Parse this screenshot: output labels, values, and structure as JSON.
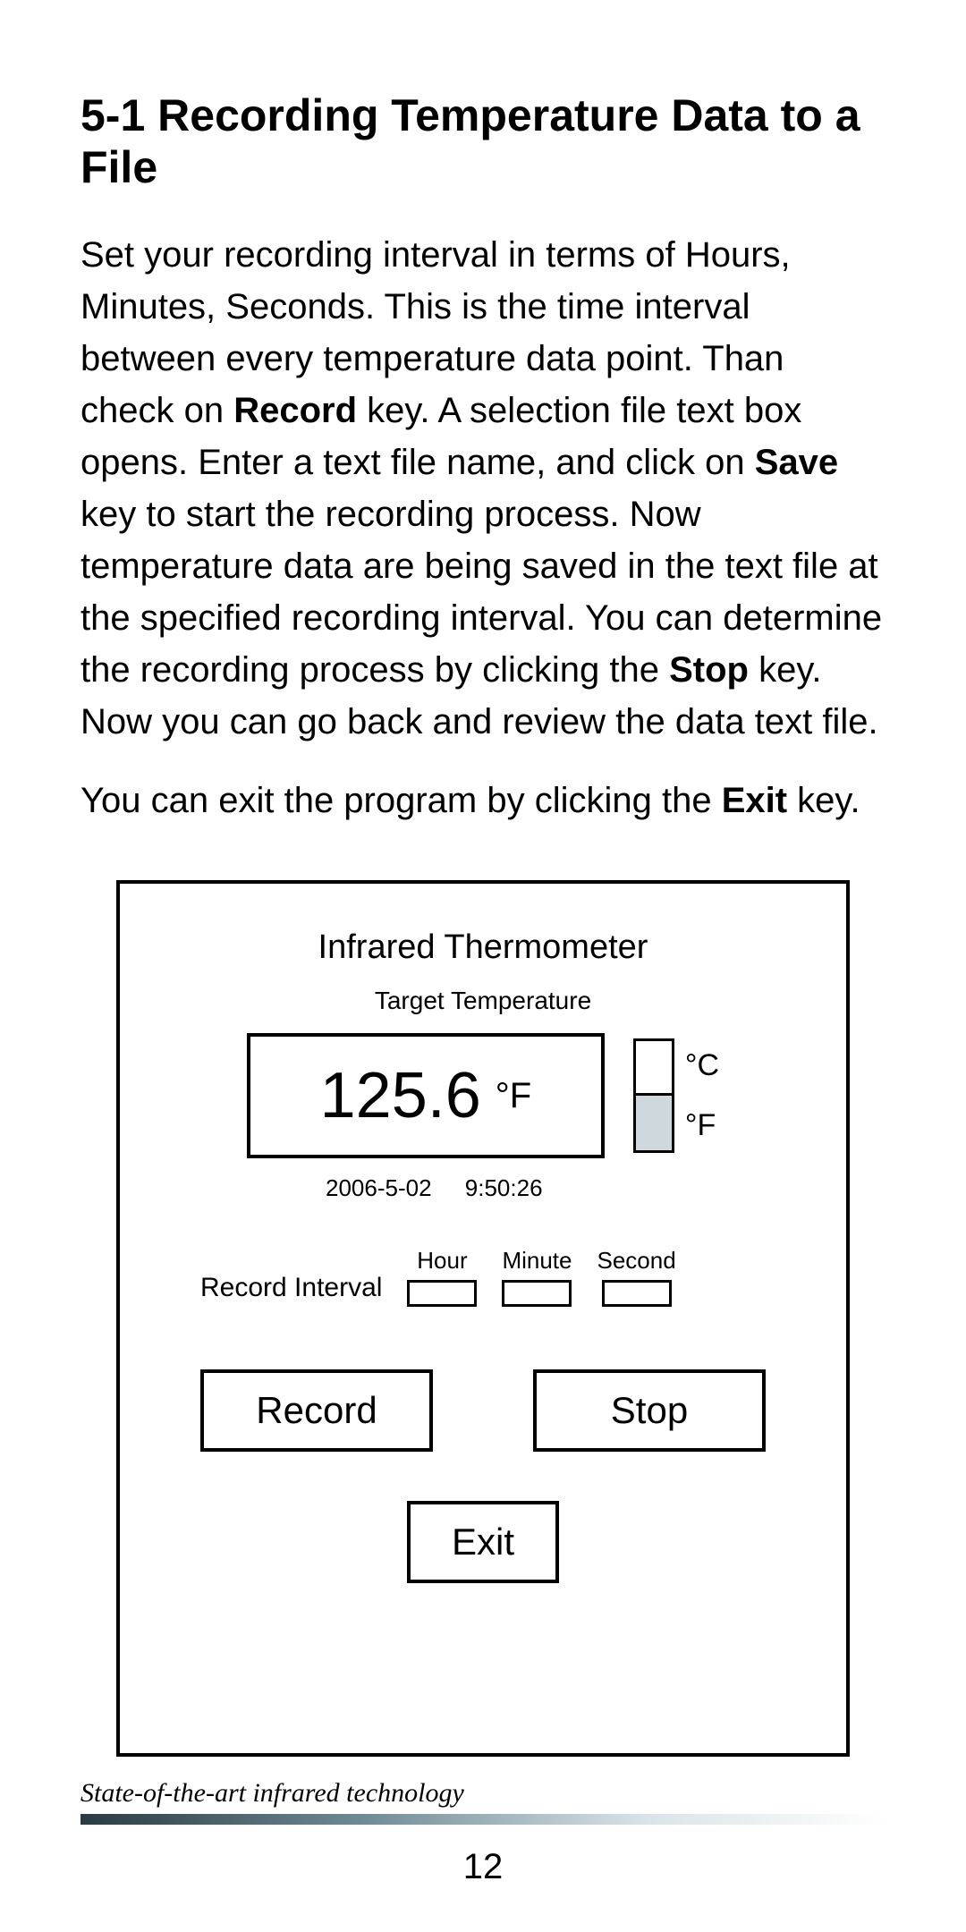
{
  "heading": "5-1 Recording Temperature Data to a File",
  "para1_pre": "Set your recording interval in terms of Hours, Minutes, Seconds. This is the time interval between every temperature data point. Than check on ",
  "para1_b1": "Record",
  "para1_mid1": " key. A selection file text box opens. Enter a text file name, and click on ",
  "para1_b2": "Save",
  "para1_mid2": " key to start the recording process. Now temperature data are being saved in the text file at the specified recording interval. You can determine the recording process by clicking the ",
  "para1_b3": "Stop",
  "para1_post": " key. Now you can go back and review the data text file.",
  "para2_pre": "You can exit the program by clicking the ",
  "para2_b1": "Exit",
  "para2_post": " key.",
  "panel": {
    "title": "Infrared Thermometer",
    "subtitle": "Target Temperature",
    "reading_value": "125.6",
    "reading_unit": "°F",
    "unit_c_label": "°C",
    "unit_f_label": "°F",
    "selected_unit": "F",
    "date": "2006-5-02",
    "time": "9:50:26",
    "interval_label": "Record Interval",
    "hour_label": "Hour",
    "minute_label": "Minute",
    "second_label": "Second",
    "record_btn": "Record",
    "stop_btn": "Stop",
    "exit_btn": "Exit"
  },
  "footer_tagline": "State-of-the-art infrared technology",
  "page_number": "12",
  "colors": {
    "border": "#000000",
    "selected_fill": "#cdd9dd",
    "footer_gradient_from": "#2a3a42",
    "footer_gradient_to": "#ffffff"
  }
}
